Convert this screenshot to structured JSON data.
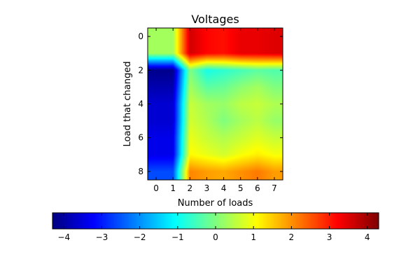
{
  "chart_data": {
    "type": "heatmap",
    "title": "Voltages",
    "xlabel": "Number of loads",
    "ylabel": "Load that changed",
    "x_ticks": [
      0,
      1,
      2,
      3,
      4,
      5,
      6,
      7
    ],
    "y_ticks": [
      0,
      2,
      4,
      6,
      8
    ],
    "colorbar": {
      "orientation": "horizontal",
      "range": [
        -4.3,
        4.3
      ],
      "ticks": [
        -4,
        -3,
        -2,
        -1,
        0,
        1,
        2,
        3,
        4
      ],
      "tick_labels": [
        "−4",
        "−3",
        "−2",
        "−1",
        "0",
        "1",
        "2",
        "3",
        "4"
      ]
    },
    "colormap": "jet",
    "interpolation": "bilinear",
    "grid": false,
    "rows": [
      0,
      1,
      2,
      3,
      4,
      5,
      6,
      7,
      8
    ],
    "columns": [
      0,
      1,
      2,
      3,
      4,
      5,
      6,
      7
    ],
    "values": [
      [
        0.3,
        0.3,
        3.6,
        3.2,
        3.1,
        3.4,
        3.4,
        3.5
      ],
      [
        0.3,
        0.3,
        3.6,
        3.2,
        3.1,
        3.4,
        3.4,
        3.5
      ],
      [
        -4.2,
        -4.2,
        0.0,
        -0.9,
        -0.7,
        -0.5,
        -0.3,
        -0.4
      ],
      [
        -3.9,
        -3.9,
        0.3,
        -0.3,
        -0.2,
        0.1,
        0.3,
        0.0
      ],
      [
        -3.6,
        -3.6,
        0.6,
        0.3,
        0.2,
        0.5,
        0.6,
        0.4
      ],
      [
        -3.6,
        -3.6,
        0.7,
        0.4,
        0.0,
        0.3,
        0.5,
        0.2
      ],
      [
        -3.4,
        -3.4,
        0.9,
        0.6,
        0.4,
        0.6,
        0.8,
        0.6
      ],
      [
        -3.4,
        -3.4,
        1.1,
        0.9,
        0.7,
        1.0,
        1.2,
        1.0
      ],
      [
        -2.6,
        -2.6,
        2.1,
        1.9,
        1.8,
        2.0,
        2.2,
        1.9
      ]
    ]
  }
}
